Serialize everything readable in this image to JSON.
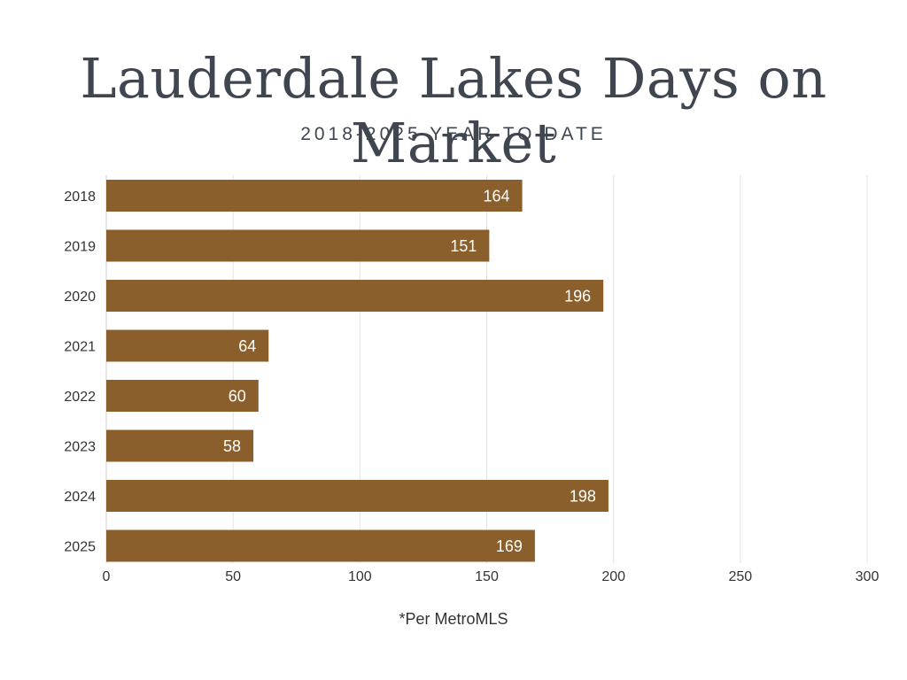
{
  "header": {
    "title": "Lauderdale Lakes Days on Market",
    "subtitle": "2018-2025 YEAR TO DATE"
  },
  "footnote": "*Per MetroMLS",
  "colors": {
    "bar": "#8b5f2b",
    "grid": "#e3e3e3",
    "text": "#3f4650"
  },
  "chart_data": {
    "type": "bar",
    "orientation": "horizontal",
    "categories": [
      "2018",
      "2019",
      "2020",
      "2021",
      "2022",
      "2023",
      "2024",
      "2025"
    ],
    "values": [
      164,
      151,
      196,
      64,
      60,
      58,
      198,
      169
    ],
    "xlim": [
      0,
      300
    ],
    "xticks": [
      0,
      50,
      100,
      150,
      200,
      250,
      300
    ],
    "grid": true,
    "data_labels": true,
    "title": "Lauderdale Lakes Days on Market",
    "subtitle": "2018-2025 YEAR TO DATE"
  }
}
